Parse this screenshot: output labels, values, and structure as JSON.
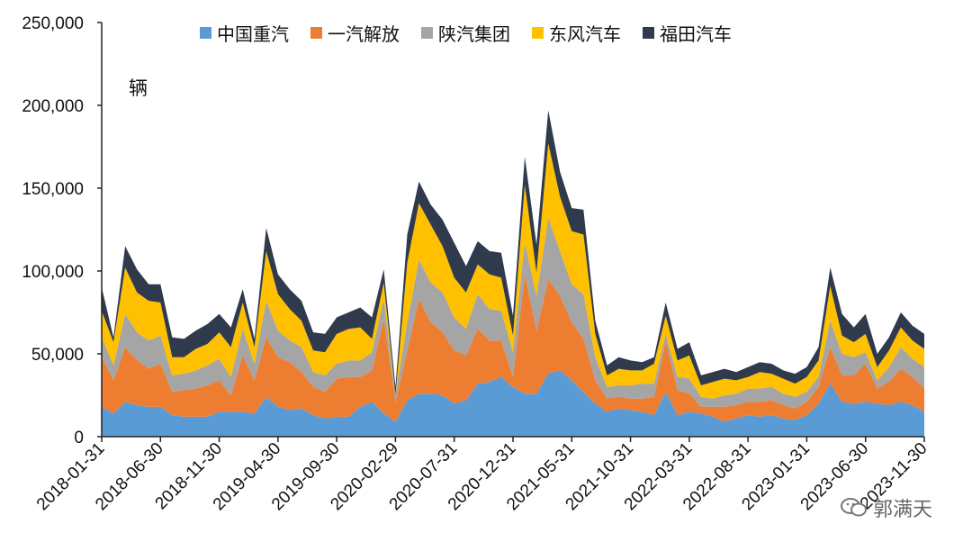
{
  "unit_label": "辆",
  "watermark_text": "郭满天",
  "colors": {
    "zhongguo": "#5b9bd5",
    "yiqi": "#ed7d31",
    "shaanqi": "#a5a5a5",
    "dongfeng": "#ffc000",
    "futian": "#2f3a4c"
  },
  "chart_data": {
    "type": "area",
    "stacked": true,
    "title": "",
    "xlabel": "",
    "ylabel": "辆",
    "ylim": [
      0,
      250000
    ],
    "yticks": [
      0,
      50000,
      100000,
      150000,
      200000,
      250000
    ],
    "ytick_labels": [
      "0",
      "50,000",
      "100,000",
      "150,000",
      "200,000",
      "250,000"
    ],
    "xtick_labels": [
      "2018-01-31",
      "2018-06-30",
      "2018-11-30",
      "2019-04-30",
      "2019-09-30",
      "2020-02-29",
      "2020-07-31",
      "2020-12-31",
      "2021-05-31",
      "2021-10-31",
      "2022-03-31",
      "2022-08-31",
      "2023-01-31",
      "2023-06-30",
      "2023-11-30"
    ],
    "xtick_indices": [
      0,
      5,
      10,
      15,
      20,
      25,
      30,
      35,
      40,
      45,
      50,
      55,
      60,
      65,
      70
    ],
    "legend_position": "top",
    "grid": false,
    "x": [
      "2018-01",
      "2018-02",
      "2018-03",
      "2018-04",
      "2018-05",
      "2018-06",
      "2018-07",
      "2018-08",
      "2018-09",
      "2018-10",
      "2018-11",
      "2018-12",
      "2019-01",
      "2019-02",
      "2019-03",
      "2019-04",
      "2019-05",
      "2019-06",
      "2019-07",
      "2019-08",
      "2019-09",
      "2019-10",
      "2019-11",
      "2019-12",
      "2020-01",
      "2020-02",
      "2020-03",
      "2020-04",
      "2020-05",
      "2020-06",
      "2020-07",
      "2020-08",
      "2020-09",
      "2020-10",
      "2020-11",
      "2020-12",
      "2021-01",
      "2021-02",
      "2021-03",
      "2021-04",
      "2021-05",
      "2021-06",
      "2021-07",
      "2021-08",
      "2021-09",
      "2021-10",
      "2021-11",
      "2021-12",
      "2022-01",
      "2022-02",
      "2022-03",
      "2022-04",
      "2022-05",
      "2022-06",
      "2022-07",
      "2022-08",
      "2022-09",
      "2022-10",
      "2022-11",
      "2022-12",
      "2023-01",
      "2023-02",
      "2023-03",
      "2023-04",
      "2023-05",
      "2023-06",
      "2023-07",
      "2023-08",
      "2023-09",
      "2023-10",
      "2023-11"
    ],
    "series": [
      {
        "name": "中国重汽",
        "color": "#5b9bd5",
        "values": [
          18000,
          14000,
          21000,
          19000,
          18000,
          18000,
          13000,
          12000,
          12000,
          12000,
          15000,
          15000,
          15000,
          14000,
          24000,
          18000,
          16000,
          17000,
          13000,
          11000,
          12000,
          12000,
          18000,
          21000,
          14000,
          9000,
          22000,
          26000,
          26000,
          25000,
          20000,
          22000,
          32000,
          33000,
          36000,
          30000,
          26000,
          26000,
          38000,
          40000,
          34000,
          27000,
          20000,
          15000,
          17000,
          16000,
          15000,
          13000,
          27000,
          13000,
          15000,
          14000,
          12000,
          9000,
          11000,
          13000,
          12000,
          13000,
          11000,
          10000,
          13000,
          20000,
          32000,
          21000,
          20000,
          21000,
          20000,
          19000,
          21000,
          19000,
          15000
        ]
      },
      {
        "name": "一汽解放",
        "color": "#ed7d31",
        "values": [
          30000,
          20000,
          33000,
          27000,
          23000,
          26000,
          14000,
          16000,
          17000,
          19000,
          19000,
          10000,
          34000,
          20000,
          36000,
          30000,
          29000,
          22000,
          17000,
          16000,
          23000,
          24000,
          18000,
          19000,
          57000,
          12000,
          30000,
          57000,
          43000,
          38000,
          32000,
          27000,
          33000,
          25000,
          22000,
          6000,
          72000,
          38000,
          57000,
          45000,
          35000,
          32000,
          14000,
          8000,
          7000,
          7000,
          8000,
          11000,
          31000,
          15000,
          11000,
          4000,
          6000,
          9000,
          8000,
          8000,
          9000,
          9000,
          8000,
          7000,
          8000,
          10000,
          22000,
          16000,
          17000,
          23000,
          9000,
          14000,
          20000,
          17000,
          14000
        ]
      },
      {
        "name": "陕汽集团",
        "color": "#a5a5a5",
        "values": [
          12000,
          9000,
          20000,
          17000,
          17000,
          17000,
          10000,
          10000,
          11000,
          12000,
          13000,
          11000,
          16000,
          10000,
          22000,
          16000,
          13000,
          15000,
          9000,
          10000,
          9000,
          10000,
          10000,
          11000,
          12000,
          4000,
          17000,
          24000,
          24000,
          24000,
          20000,
          16000,
          21000,
          19000,
          18000,
          15000,
          19000,
          21000,
          37000,
          27000,
          23000,
          27000,
          14000,
          7000,
          7000,
          8000,
          9000,
          8000,
          4000,
          8000,
          9000,
          6000,
          5000,
          7000,
          7000,
          8000,
          8000,
          8000,
          7000,
          7000,
          6000,
          6000,
          16000,
          13000,
          11000,
          7000,
          5000,
          9000,
          13000,
          11000,
          13000
        ]
      },
      {
        "name": "东风汽车",
        "color": "#ffc000",
        "values": [
          16000,
          14000,
          28000,
          24000,
          24000,
          20000,
          11000,
          10000,
          13000,
          13000,
          16000,
          18000,
          16000,
          10000,
          30000,
          22000,
          19000,
          16000,
          13000,
          14000,
          18000,
          19000,
          20000,
          8000,
          10000,
          0,
          36000,
          34000,
          35000,
          28000,
          24000,
          22000,
          18000,
          21000,
          20000,
          10000,
          35000,
          14000,
          45000,
          33000,
          32000,
          36000,
          14000,
          7000,
          10000,
          9000,
          8000,
          12000,
          11000,
          10000,
          14000,
          7000,
          10000,
          10000,
          8000,
          7000,
          10000,
          8000,
          9000,
          8000,
          9000,
          10000,
          21000,
          11000,
          9000,
          11000,
          8000,
          10000,
          12000,
          11000,
          11000
        ]
      },
      {
        "name": "福田汽车",
        "color": "#2f3a4c",
        "values": [
          14000,
          3000,
          13000,
          14000,
          10000,
          11000,
          12000,
          11000,
          11000,
          12000,
          11000,
          12000,
          8000,
          5000,
          14000,
          12000,
          12000,
          12000,
          11000,
          11000,
          10000,
          10000,
          12000,
          13000,
          8000,
          5000,
          17000,
          13000,
          12000,
          16000,
          21000,
          16000,
          14000,
          14000,
          15000,
          12000,
          17000,
          17000,
          20000,
          15000,
          14000,
          15000,
          8000,
          6000,
          7000,
          6000,
          5000,
          4000,
          8000,
          7000,
          8000,
          6000,
          6000,
          6000,
          5000,
          6000,
          6000,
          6000,
          5000,
          6000,
          6000,
          8000,
          11000,
          13000,
          9000,
          12000,
          8000,
          8000,
          9000,
          9000,
          9000
        ]
      }
    ]
  }
}
